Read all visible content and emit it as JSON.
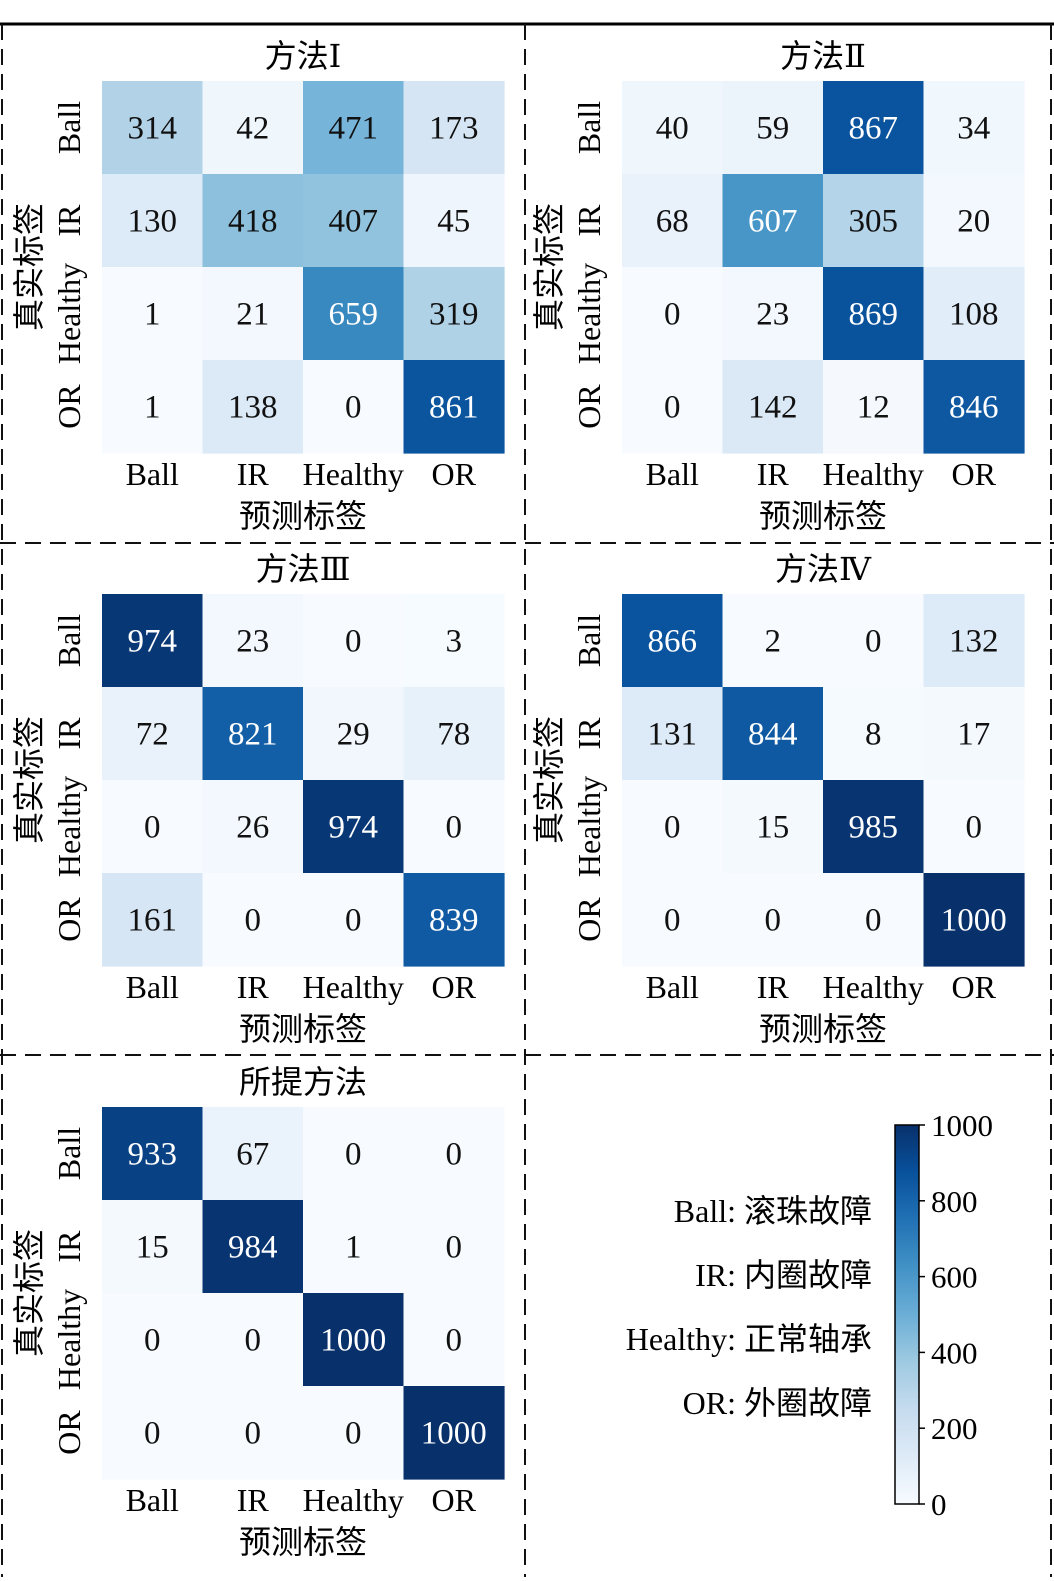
{
  "legend": {
    "entries": [
      {
        "key": "Ball:",
        "desc": "滚珠故障"
      },
      {
        "key": "IR:",
        "desc": "内圈故障"
      },
      {
        "key": "Healthy:",
        "desc": "正常轴承"
      },
      {
        "key": "OR:",
        "desc": "外圈故障"
      }
    ]
  },
  "colorbar": {
    "min": 0,
    "max": 1000,
    "ticks": [
      "0",
      "200",
      "400",
      "600",
      "800",
      "1000"
    ],
    "colormap": "Blues",
    "colors": [
      "#f7fbff",
      "#deebf7",
      "#c6dbef",
      "#9ecae1",
      "#6baed6",
      "#4292c6",
      "#2171b5",
      "#08519c",
      "#08306b"
    ]
  },
  "chart_data": [
    {
      "type": "heatmap",
      "title": "方法Ⅰ",
      "xlabel": "预测标签",
      "ylabel": "真实标签",
      "x_categories": [
        "Ball",
        "IR",
        "Healthy",
        "OR"
      ],
      "y_categories": [
        "Ball",
        "IR",
        "Healthy",
        "OR"
      ],
      "values": [
        [
          314,
          42,
          471,
          173
        ],
        [
          130,
          418,
          407,
          45
        ],
        [
          1,
          21,
          659,
          319
        ],
        [
          1,
          138,
          0,
          861
        ]
      ]
    },
    {
      "type": "heatmap",
      "title": "方法Ⅱ",
      "xlabel": "预测标签",
      "ylabel": "真实标签",
      "x_categories": [
        "Ball",
        "IR",
        "Healthy",
        "OR"
      ],
      "y_categories": [
        "Ball",
        "IR",
        "Healthy",
        "OR"
      ],
      "values": [
        [
          40,
          59,
          867,
          34
        ],
        [
          68,
          607,
          305,
          20
        ],
        [
          0,
          23,
          869,
          108
        ],
        [
          0,
          142,
          12,
          846
        ]
      ]
    },
    {
      "type": "heatmap",
      "title": "方法Ⅲ",
      "xlabel": "预测标签",
      "ylabel": "真实标签",
      "x_categories": [
        "Ball",
        "IR",
        "Healthy",
        "OR"
      ],
      "y_categories": [
        "Ball",
        "IR",
        "Healthy",
        "OR"
      ],
      "values": [
        [
          974,
          23,
          0,
          3
        ],
        [
          72,
          821,
          29,
          78
        ],
        [
          0,
          26,
          974,
          0
        ],
        [
          161,
          0,
          0,
          839
        ]
      ]
    },
    {
      "type": "heatmap",
      "title": "方法Ⅳ",
      "xlabel": "预测标签",
      "ylabel": "真实标签",
      "x_categories": [
        "Ball",
        "IR",
        "Healthy",
        "OR"
      ],
      "y_categories": [
        "Ball",
        "IR",
        "Healthy",
        "OR"
      ],
      "values": [
        [
          866,
          2,
          0,
          132
        ],
        [
          131,
          844,
          8,
          17
        ],
        [
          0,
          15,
          985,
          0
        ],
        [
          0,
          0,
          0,
          1000
        ]
      ]
    },
    {
      "type": "heatmap",
      "title": "所提方法",
      "xlabel": "预测标签",
      "ylabel": "真实标签",
      "x_categories": [
        "Ball",
        "IR",
        "Healthy",
        "OR"
      ],
      "y_categories": [
        "Ball",
        "IR",
        "Healthy",
        "OR"
      ],
      "values": [
        [
          933,
          67,
          0,
          0
        ],
        [
          15,
          984,
          1,
          0
        ],
        [
          0,
          0,
          1000,
          0
        ],
        [
          0,
          0,
          0,
          1000
        ]
      ]
    }
  ]
}
